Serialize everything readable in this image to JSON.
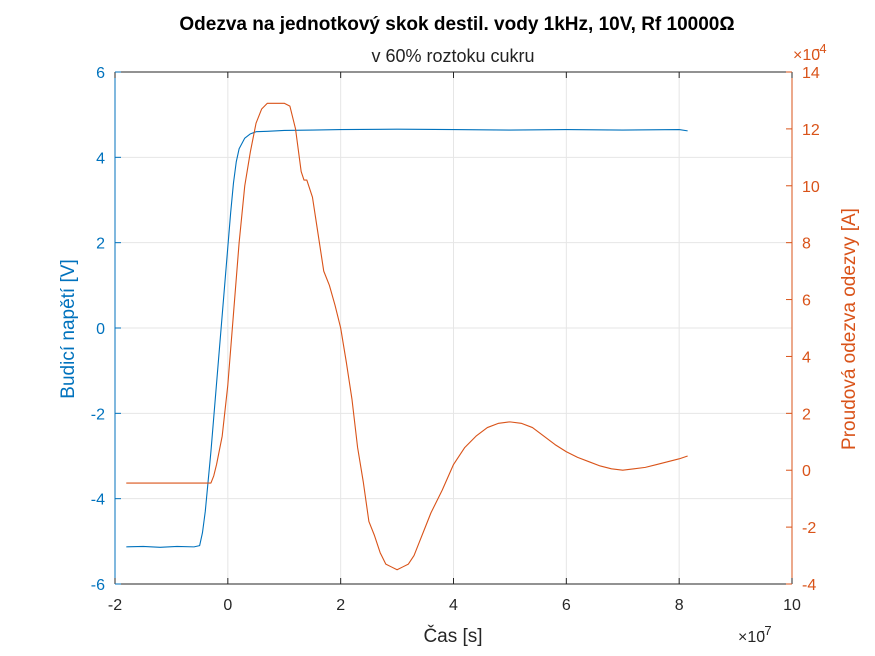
{
  "chart_data": {
    "type": "line",
    "title": "Odezva na jednotkový skok destil. vody 1kHz, 10V, Rf 10000Ω",
    "subtitle": "v 60% roztoku cukru",
    "xlabel": "Čas [s]",
    "xlim": [
      -2,
      10
    ],
    "x_ticks": [
      "-2",
      "0",
      "2",
      "4",
      "6",
      "8",
      "10"
    ],
    "x_exponent_label": "×10",
    "x_exponent_power": "-7",
    "x_scale": 1e-07,
    "y_left": {
      "label": "Budicí napětí [V]",
      "lim": [
        -6,
        6
      ],
      "ticks": [
        "-6",
        "-4",
        "-2",
        "0",
        "2",
        "4",
        "6"
      ],
      "color": "#0072bd"
    },
    "y_right": {
      "label": "Proudová odezva odezvy [A]",
      "lim": [
        -4,
        14
      ],
      "ticks": [
        "-4",
        "-2",
        "0",
        "2",
        "4",
        "6",
        "8",
        "10",
        "12",
        "14"
      ],
      "exponent_label": "×10",
      "exponent_power": "-4",
      "scale": 0.0001,
      "color": "#d95319"
    },
    "grid": true,
    "series": [
      {
        "axis": "left",
        "color": "#0072bd",
        "x": [
          -1.8,
          -1.5,
          -1.2,
          -0.9,
          -0.6,
          -0.5,
          -0.45,
          -0.4,
          -0.35,
          -0.3,
          -0.25,
          -0.2,
          -0.15,
          -0.1,
          -0.05,
          0.0,
          0.05,
          0.1,
          0.15,
          0.2,
          0.3,
          0.4,
          0.5,
          0.7,
          1.0,
          1.5,
          2.0,
          3.0,
          4.0,
          5.0,
          6.0,
          7.0,
          8.0,
          8.15
        ],
        "y": [
          -5.13,
          -5.12,
          -5.14,
          -5.12,
          -5.13,
          -5.1,
          -4.8,
          -4.3,
          -3.6,
          -2.9,
          -2.1,
          -1.3,
          -0.5,
          0.3,
          1.1,
          1.9,
          2.7,
          3.4,
          3.9,
          4.2,
          4.45,
          4.55,
          4.6,
          4.61,
          4.63,
          4.64,
          4.65,
          4.66,
          4.65,
          4.64,
          4.65,
          4.64,
          4.65,
          4.62
        ]
      },
      {
        "axis": "right",
        "color": "#d95319",
        "x": [
          -1.8,
          -1.5,
          -1.0,
          -0.5,
          -0.3,
          -0.25,
          -0.2,
          -0.1,
          0.0,
          0.1,
          0.2,
          0.3,
          0.4,
          0.5,
          0.6,
          0.7,
          0.8,
          0.9,
          1.0,
          1.1,
          1.2,
          1.3,
          1.35,
          1.4,
          1.5,
          1.6,
          1.7,
          1.8,
          1.9,
          2.0,
          2.1,
          2.2,
          2.3,
          2.4,
          2.5,
          2.6,
          2.7,
          2.8,
          2.9,
          3.0,
          3.1,
          3.2,
          3.3,
          3.4,
          3.5,
          3.6,
          3.8,
          4.0,
          4.2,
          4.4,
          4.6,
          4.8,
          5.0,
          5.2,
          5.4,
          5.6,
          5.8,
          6.0,
          6.2,
          6.4,
          6.6,
          6.8,
          7.0,
          7.2,
          7.4,
          7.6,
          7.8,
          8.0,
          8.15
        ],
        "y": [
          -0.45,
          -0.45,
          -0.45,
          -0.45,
          -0.45,
          -0.2,
          0.2,
          1.2,
          3.0,
          5.5,
          8.0,
          10.0,
          11.2,
          12.2,
          12.7,
          12.9,
          12.9,
          12.9,
          12.9,
          12.8,
          12.0,
          10.5,
          10.2,
          10.2,
          9.6,
          8.3,
          7.0,
          6.5,
          5.8,
          5.0,
          3.8,
          2.5,
          0.8,
          -0.4,
          -1.8,
          -2.3,
          -2.9,
          -3.3,
          -3.4,
          -3.5,
          -3.4,
          -3.3,
          -3.0,
          -2.5,
          -2.0,
          -1.5,
          -0.7,
          0.2,
          0.8,
          1.2,
          1.5,
          1.65,
          1.7,
          1.65,
          1.5,
          1.2,
          0.9,
          0.65,
          0.45,
          0.3,
          0.15,
          0.05,
          0.0,
          0.05,
          0.1,
          0.2,
          0.3,
          0.4,
          0.5
        ]
      }
    ]
  }
}
